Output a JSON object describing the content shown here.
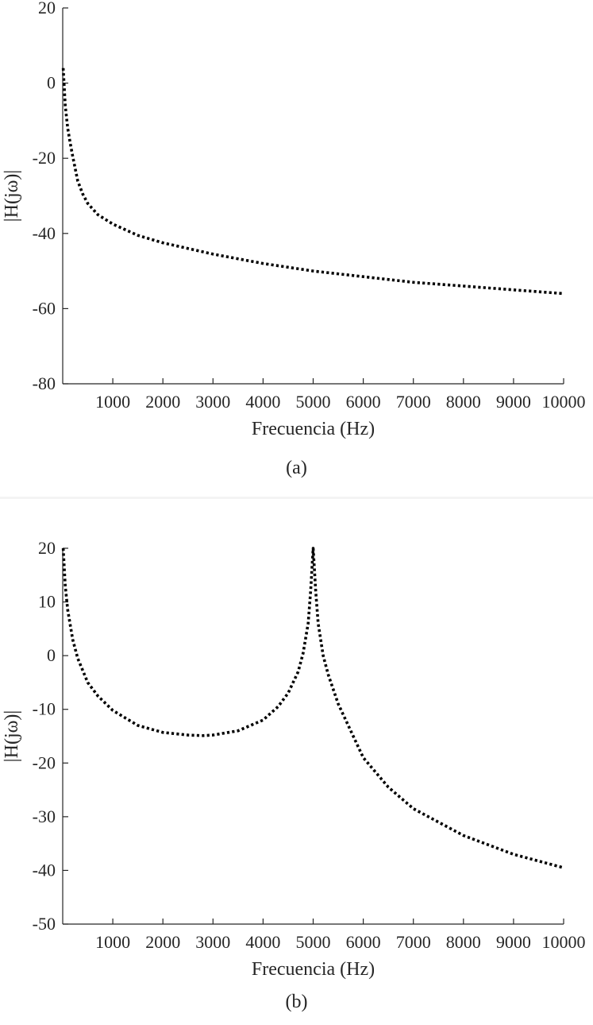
{
  "chart_data": [
    {
      "type": "line",
      "caption": "(a)",
      "xlabel": "Frecuencia (Hz)",
      "ylabel": "|H(jω)|",
      "xlim": [
        0,
        10000
      ],
      "ylim": [
        -80,
        20
      ],
      "xticks": [
        1000,
        2000,
        3000,
        4000,
        5000,
        6000,
        7000,
        8000,
        9000,
        10000
      ],
      "xtick_labels": [
        "1000",
        "2000",
        "3000",
        "4000",
        "5000",
        "6000",
        "7000",
        "8000",
        "9000",
        "10000"
      ],
      "yticks": [
        20,
        0,
        -20,
        -40,
        -60,
        -80
      ],
      "ytick_labels": [
        "20",
        "0",
        "-20",
        "-40",
        "-60",
        "-80"
      ],
      "line_style": "dotted",
      "line_color": "#000000",
      "grid": false,
      "series": [
        {
          "x": [
            10,
            50,
            100,
            150,
            200,
            300,
            400,
            500,
            700,
            1000,
            1500,
            2000,
            2500,
            3000,
            4000,
            5000,
            6000,
            7000,
            8000,
            9000,
            10000
          ],
          "values": [
            4,
            -6,
            -12,
            -16,
            -19.5,
            -26,
            -29.5,
            -32,
            -35,
            -37.5,
            -40.5,
            -42.5,
            -44,
            -45.5,
            -48,
            -50,
            -51.5,
            -53,
            -54,
            -55,
            -56
          ]
        }
      ]
    },
    {
      "type": "line",
      "caption": "(b)",
      "xlabel": "Frecuencia (Hz)",
      "ylabel": "|H(jω)|",
      "xlim": [
        0,
        10000
      ],
      "ylim": [
        -50,
        20
      ],
      "xticks": [
        1000,
        2000,
        3000,
        4000,
        5000,
        6000,
        7000,
        8000,
        9000,
        10000
      ],
      "xtick_labels": [
        "1000",
        "2000",
        "3000",
        "4000",
        "5000",
        "6000",
        "7000",
        "8000",
        "9000",
        "10000"
      ],
      "yticks": [
        20,
        10,
        0,
        -10,
        -20,
        -30,
        -40,
        -50
      ],
      "ytick_labels": [
        "20",
        "10",
        "0",
        "-10",
        "-20",
        "-30",
        "-40",
        "-50"
      ],
      "line_style": "dotted",
      "line_color": "#000000",
      "grid": false,
      "series": [
        {
          "x": [
            10,
            50,
            100,
            200,
            300,
            500,
            700,
            1000,
            1500,
            2000,
            2500,
            2800,
            3000,
            3500,
            4000,
            4300,
            4500,
            4700,
            4800,
            4900,
            4950,
            5000,
            5050,
            5100,
            5200,
            5300,
            5500,
            6000,
            6500,
            7000,
            8000,
            9000,
            10000
          ],
          "values": [
            20,
            13,
            8.5,
            3,
            -0.5,
            -5,
            -7.5,
            -10.2,
            -13,
            -14.3,
            -14.8,
            -14.9,
            -14.8,
            -14,
            -12,
            -9.5,
            -7,
            -3,
            0.5,
            6,
            12,
            20,
            12,
            6,
            0,
            -3.5,
            -9,
            -19,
            -24.5,
            -28.5,
            -33.5,
            -37,
            -39.5
          ]
        }
      ]
    }
  ]
}
